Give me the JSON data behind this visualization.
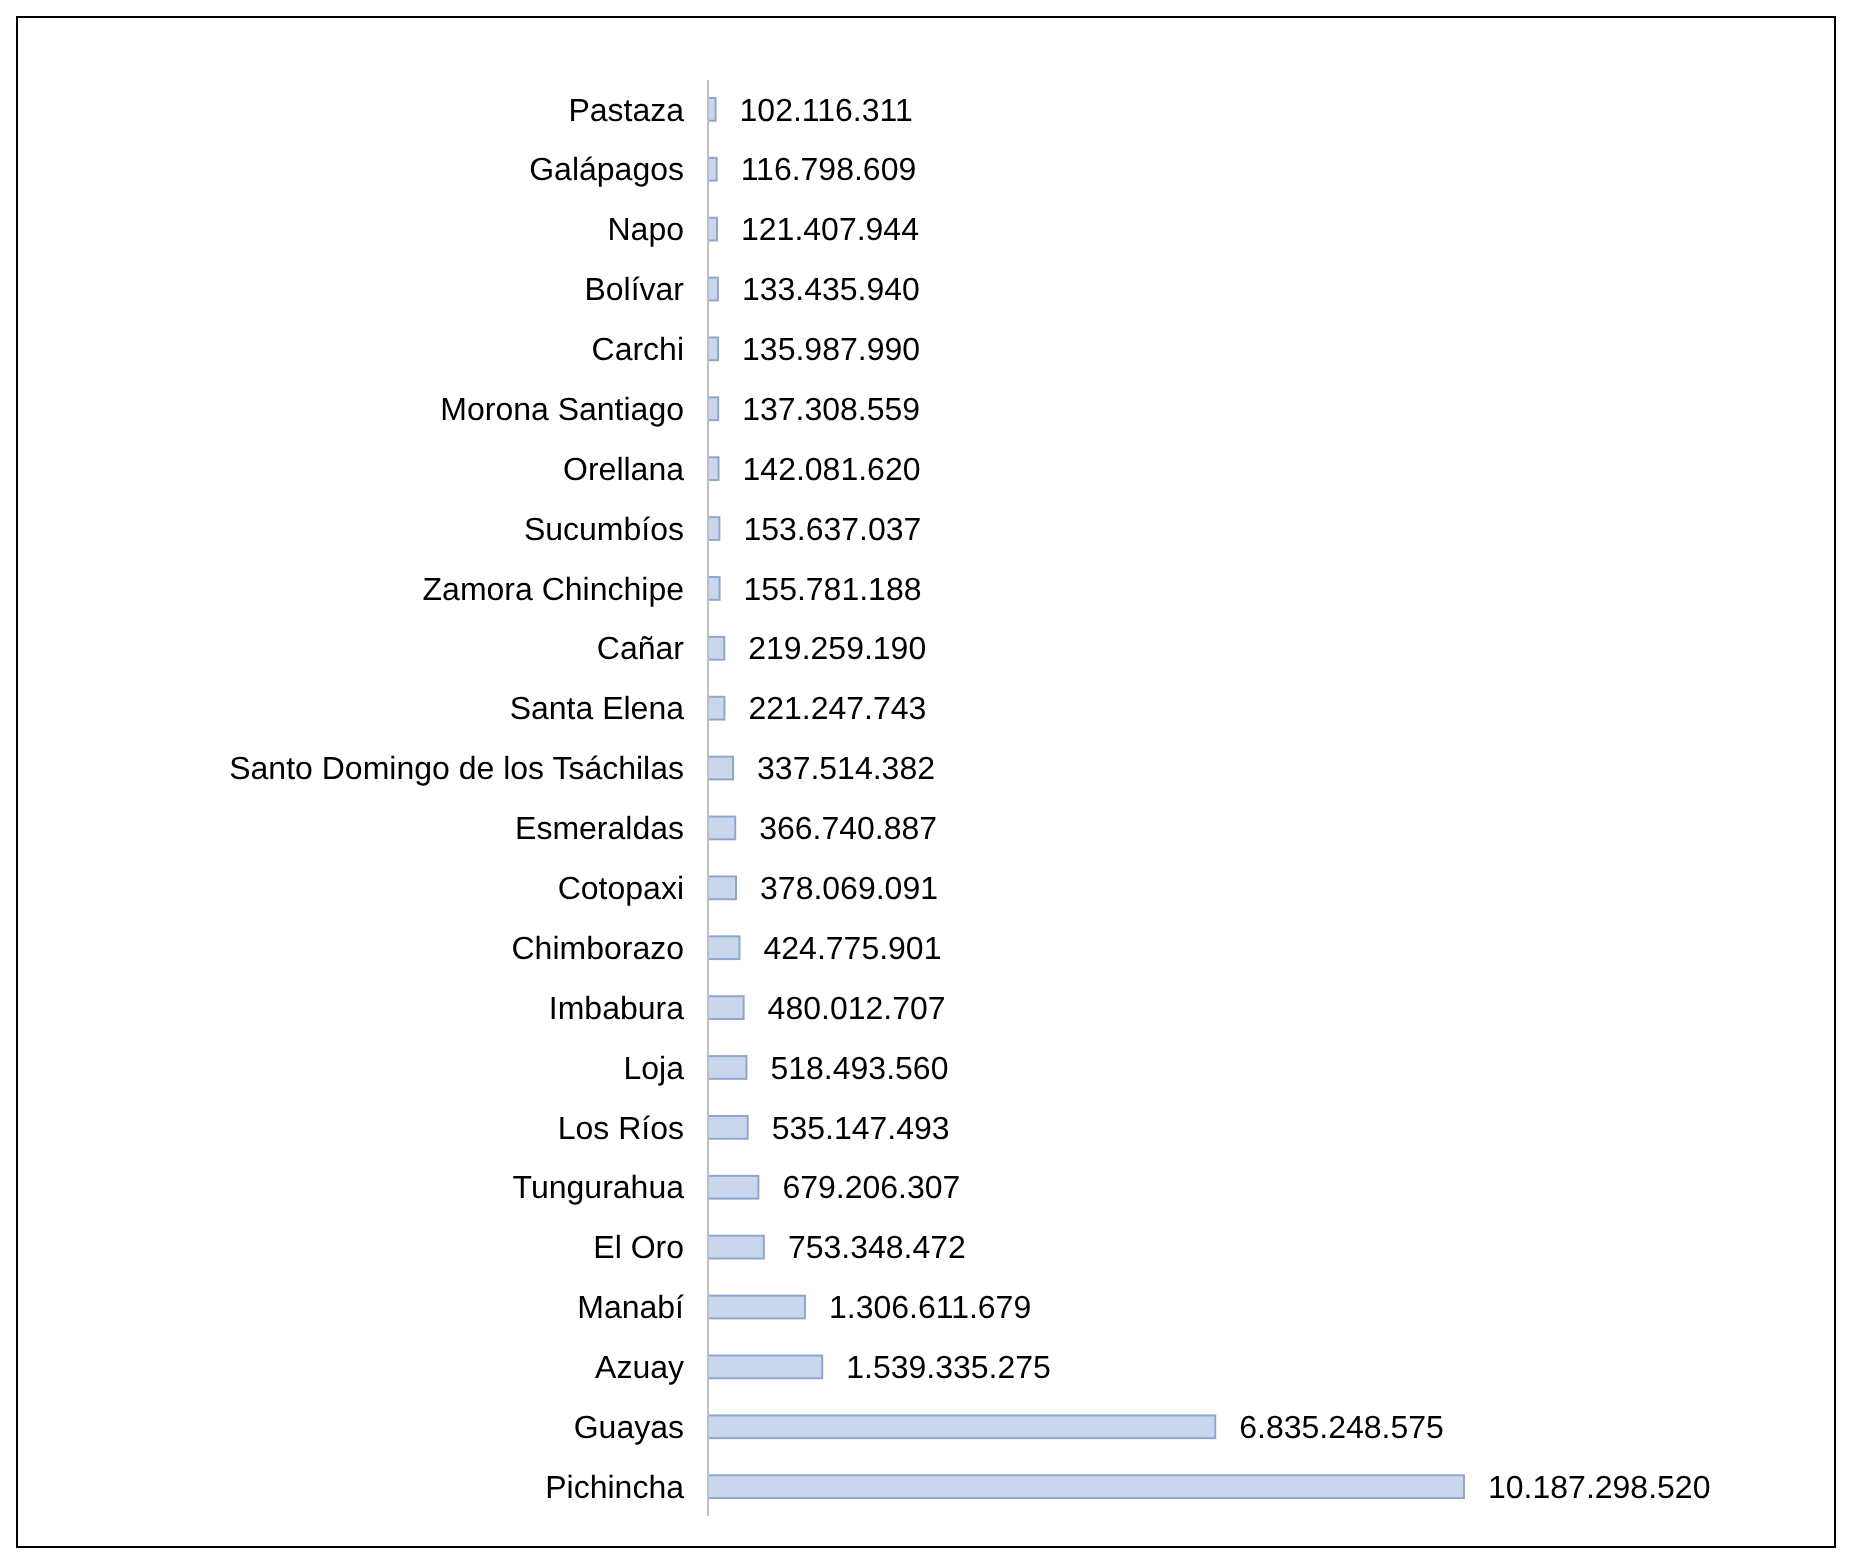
{
  "chart_data": {
    "type": "bar",
    "orientation": "horizontal",
    "color": "#c9d6ec",
    "categories": [
      "Pastaza",
      "Galápagos",
      "Napo",
      "Bolívar",
      "Carchi",
      "Morona Santiago",
      "Orellana",
      "Sucumbíos",
      "Zamora Chinchipe",
      "Cañar",
      "Santa Elena",
      "Santo Domingo de los Tsáchilas",
      "Esmeraldas",
      "Cotopaxi",
      "Chimborazo",
      "Imbabura",
      "Loja",
      "Los Ríos",
      "Tungurahua",
      "El Oro",
      "Manabí",
      "Azuay",
      "Guayas",
      "Pichincha"
    ],
    "values": [
      102116311,
      116798609,
      121407944,
      133435940,
      135987990,
      137308559,
      142081620,
      153637037,
      155781188,
      219259190,
      221247743,
      337514382,
      366740887,
      378069091,
      424775901,
      480012707,
      518493560,
      535147493,
      679206307,
      753348472,
      1306611679,
      1539335275,
      6835248575,
      10187298520
    ],
    "value_labels": [
      "102.116.311",
      "116.798.609",
      "121.407.944",
      "133.435.940",
      "135.987.990",
      "137.308.559",
      "142.081.620",
      "153.637.037",
      "155.781.188",
      "219.259.190",
      "221.247.743",
      "337.514.382",
      "366.740.887",
      "378.069.091",
      "424.775.901",
      "480.012.707",
      "518.493.560",
      "535.147.493",
      "679.206.307",
      "753.348.472",
      "1.306.611.679",
      "1.539.335.275",
      "6.835.248.575",
      "10.187.298.520"
    ]
  }
}
